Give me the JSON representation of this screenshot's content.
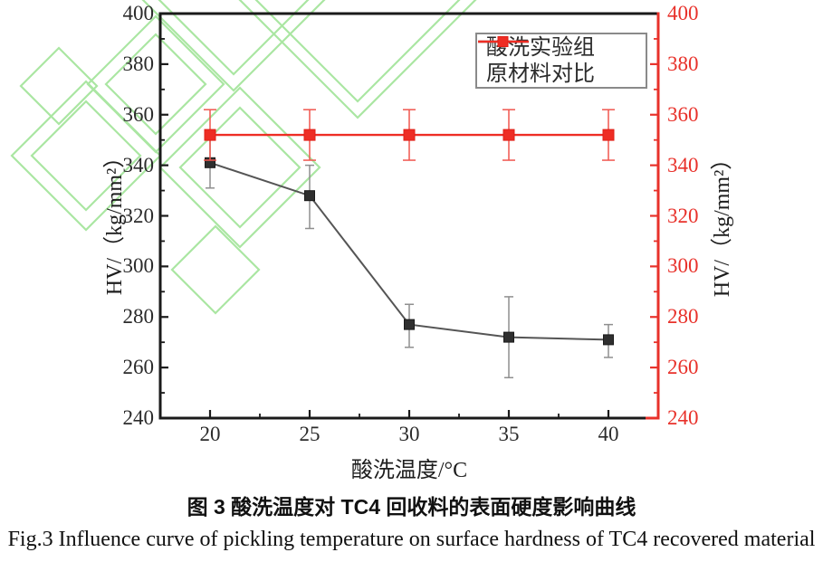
{
  "figure": {
    "caption_zh": "图 3 酸洗温度对 TC4 回收料的表面硬度影响曲线",
    "caption_en": "Fig.3 Influence curve of pickling temperature on surface hardness of TC4 recovered material"
  },
  "watermark": {
    "color": "#96e08c"
  },
  "chart_data": {
    "type": "line",
    "title": "",
    "xlabel": "酸洗温度/°C",
    "ylabel_left": "HV/（kg/mm²）",
    "ylabel_right": "HV/（kg/mm²）",
    "xlim": [
      17.5,
      42.5
    ],
    "ylim": [
      240,
      400
    ],
    "x_ticks_major": [
      20,
      25,
      30,
      35,
      40
    ],
    "x_ticks_minor": [
      22.5,
      27.5,
      32.5,
      37.5
    ],
    "y_ticks_major": [
      240,
      260,
      280,
      300,
      320,
      340,
      360,
      380,
      400
    ],
    "y_ticks_minor": [
      250,
      270,
      290,
      310,
      330,
      350,
      370,
      390
    ],
    "grid": false,
    "legend_position": "top-right-inside",
    "axis_colors": {
      "left": "#1a1a1a",
      "bottom": "#1a1a1a",
      "top": "#1a1a1a",
      "right": "#e8312a",
      "right_tick_text": "#e8312a",
      "left_tick_text": "#2b2b2b"
    },
    "series": [
      {
        "name": "酸洗实验组",
        "color": "#555555",
        "marker_color": "#2f2f2f",
        "marker_edge": "#1a1a1a",
        "errorbar_color": "#8f8f8f",
        "cap_halfwidth": 5,
        "x": [
          20,
          25,
          30,
          35,
          40
        ],
        "y": [
          341,
          328,
          277,
          272,
          271
        ],
        "err_plus": [
          10,
          12,
          8,
          16,
          6
        ],
        "err_minus": [
          10,
          13,
          9,
          16,
          7
        ]
      },
      {
        "name": "原材料对比",
        "color": "#ee2d24",
        "marker_color": "#ee2d24",
        "marker_edge": "#e02017",
        "errorbar_color": "#f0564e",
        "cap_halfwidth": 7,
        "x": [
          20,
          25,
          30,
          35,
          40
        ],
        "y": [
          352,
          352,
          352,
          352,
          352
        ],
        "err_plus": [
          10,
          10,
          10,
          10,
          10
        ],
        "err_minus": [
          10,
          10,
          10,
          10,
          10
        ]
      }
    ]
  }
}
